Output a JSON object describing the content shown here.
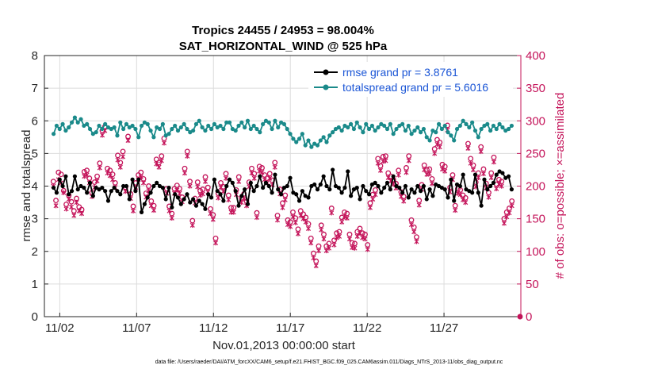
{
  "chart_data": {
    "type": "line",
    "title": [
      "Tropics 24455 / 24953 = 98.004%",
      "SAT_HORIZONTAL_WIND @ 525 hPa"
    ],
    "xlabel": "Nov.01,2013 00:00:00 start",
    "ylabel": "rmse and totalspread",
    "ylabel_right": "# of obs: o=possible; ×=assimilated",
    "xlim": [
      0.5,
      31.5
    ],
    "ylim": [
      0,
      8
    ],
    "ylim_right": [
      0,
      400
    ],
    "x_ticks": [
      {
        "value": 1.5,
        "label": "11/02"
      },
      {
        "value": 6.5,
        "label": "11/07"
      },
      {
        "value": 11.5,
        "label": "11/12"
      },
      {
        "value": 16.5,
        "label": "11/17"
      },
      {
        "value": 21.5,
        "label": "11/22"
      },
      {
        "value": 26.5,
        "label": "11/27"
      }
    ],
    "y_ticks": [
      0,
      1,
      2,
      3,
      4,
      5,
      6,
      7,
      8
    ],
    "y_ticks_right": [
      0,
      50,
      100,
      150,
      200,
      250,
      300,
      350,
      400
    ],
    "grid": true,
    "legend_position": "top-right",
    "colors": {
      "rmse": "#000000",
      "spread": "#1a8a8a",
      "obs": "#c4145a",
      "axis": "#262626",
      "legend_text": "#1a55d6"
    },
    "series": [
      {
        "name": "rmse grand pr = 3.8761",
        "color": "#000000",
        "marker": "filled-circle",
        "values": [
          3.95,
          3.8,
          4.2,
          4.0,
          4.3,
          3.75,
          3.85,
          4.3,
          3.9,
          4.0,
          3.95,
          3.8,
          4.1,
          3.7,
          3.95,
          3.9,
          3.95,
          3.85,
          3.55,
          3.85,
          3.95,
          3.85,
          3.75,
          4.0,
          4.0,
          3.6,
          4.2,
          3.85,
          4.2,
          3.2,
          3.45,
          3.65,
          3.8,
          4.0,
          4.1,
          4.0,
          3.95,
          3.6,
          3.95,
          3.35,
          3.75,
          3.65,
          3.45,
          3.6,
          3.75,
          3.5,
          3.6,
          3.4,
          3.55,
          3.45,
          3.3,
          3.75,
          3.65,
          4.2,
          3.85,
          3.75,
          3.55,
          4.0,
          4.2,
          4.1,
          3.85,
          3.4,
          3.7,
          3.9,
          3.45,
          4.1,
          3.85,
          4.0,
          4.3,
          3.95,
          4.1,
          4.0,
          3.8,
          4.35,
          3.9,
          3.75,
          3.95,
          4.0,
          4.25,
          3.8,
          3.75,
          3.55,
          3.85,
          3.7,
          3.65,
          4.0,
          4.05,
          3.9,
          4.05,
          4.3,
          4.0,
          3.9,
          4.5,
          4.0,
          3.95,
          3.8,
          3.95,
          4.45,
          3.7,
          3.9,
          3.95,
          3.6,
          4.0,
          3.85,
          3.75,
          4.05,
          4.1,
          4.0,
          3.8,
          3.95,
          4.1,
          3.9,
          4.3,
          4.0,
          3.95,
          3.8,
          4.0,
          3.65,
          3.9,
          3.8,
          4.0,
          3.85,
          4.0,
          3.6,
          3.9,
          3.7,
          4.05,
          4.0,
          3.95,
          3.9,
          3.65,
          4.2,
          3.55,
          4.05,
          4.0,
          4.35,
          3.9,
          3.85,
          3.8,
          4.35,
          3.8,
          3.4,
          4.2,
          3.9,
          4.0,
          4.1,
          4.35,
          4.45,
          4.4,
          4.25,
          4.3,
          3.9
        ]
      },
      {
        "name": "totalspread grand pr = 5.6016",
        "color": "#1a8a8a",
        "marker": "filled-circle",
        "values": [
          5.6,
          5.85,
          5.75,
          5.9,
          5.7,
          5.8,
          5.95,
          6.1,
          5.95,
          6.05,
          5.85,
          5.9,
          5.75,
          5.6,
          5.65,
          5.85,
          5.75,
          5.9,
          5.8,
          5.75,
          5.8,
          5.55,
          5.95,
          5.75,
          5.9,
          5.8,
          5.85,
          5.75,
          5.5,
          5.85,
          5.95,
          5.9,
          5.7,
          5.5,
          5.8,
          5.75,
          5.9,
          5.55,
          5.6,
          5.75,
          5.85,
          5.7,
          5.8,
          5.9,
          5.75,
          5.65,
          5.7,
          5.9,
          6.0,
          5.8,
          5.7,
          5.85,
          5.75,
          5.9,
          5.8,
          5.85,
          5.75,
          5.95,
          5.95,
          5.75,
          5.7,
          5.85,
          5.95,
          5.8,
          6.0,
          5.75,
          5.85,
          5.75,
          5.65,
          5.9,
          6.0,
          5.95,
          5.75,
          6.0,
          5.8,
          5.95,
          5.9,
          5.75,
          5.6,
          5.45,
          5.35,
          5.45,
          5.6,
          5.25,
          5.4,
          5.2,
          5.3,
          5.25,
          5.4,
          5.5,
          5.35,
          5.55,
          5.65,
          5.75,
          5.8,
          5.7,
          5.85,
          5.8,
          5.9,
          5.75,
          5.95,
          5.8,
          5.65,
          5.9,
          5.75,
          5.85,
          5.7,
          5.8,
          5.9,
          5.85,
          5.75,
          5.9,
          5.6,
          5.75,
          5.85,
          5.9,
          5.7,
          5.85,
          5.6,
          5.7,
          5.8,
          5.65,
          5.75,
          5.5,
          5.4,
          5.7,
          5.65,
          5.9,
          5.75,
          5.85,
          5.65,
          5.55,
          5.4,
          5.75,
          5.85,
          6.0,
          5.9,
          5.8,
          5.95,
          5.7,
          5.5,
          5.75,
          5.85,
          5.9,
          5.7,
          5.85,
          5.75,
          5.9,
          5.8,
          5.7,
          5.75,
          5.85
        ]
      }
    ],
    "obs_counts": {
      "possible": [
        207,
        178,
        221,
        218,
        193,
        172,
        186,
        176,
        162,
        181,
        168,
        164,
        222,
        224,
        212,
        190,
        206,
        215,
        235,
        285,
        291,
        227,
        224,
        218,
        205,
        247,
        236,
        253,
        198,
        276,
        188,
        169,
        205,
        217,
        221,
        211,
        189,
        200,
        177,
        170,
        241,
        236,
        246,
        273,
        196,
        169,
        158,
        196,
        201,
        196,
        183,
        227,
        253,
        207,
        147,
        181,
        206,
        193,
        195,
        214,
        198,
        165,
        156,
        120,
        189,
        205,
        199,
        219,
        186,
        167,
        167,
        194,
        214,
        182,
        188,
        177,
        206,
        227,
        219,
        159,
        230,
        228,
        217,
        212,
        219,
        209,
        236,
        155,
        195,
        174,
        186,
        148,
        145,
        160,
        151,
        134,
        162,
        157,
        152,
        142,
        120,
        97,
        85,
        108,
        140,
        126,
        108,
        112,
        166,
        117,
        128,
        130,
        152,
        160,
        158,
        126,
        113,
        112,
        130,
        135,
        128,
        126,
        110,
        174,
        187,
        194,
        242,
        231,
        245,
        246,
        220,
        215,
        210,
        204,
        224,
        191,
        184,
        228,
        246,
        148,
        137,
        122,
        178,
        202,
        232,
        225,
        226,
        211,
        257,
        271,
        267,
        233,
        230,
        293,
        198,
        217,
        170,
        196,
        194,
        186,
        182,
        265,
        242,
        232,
        206,
        220,
        260,
        226,
        204,
        190,
        220,
        244,
        203,
        210,
        207,
        150,
        160,
        166,
        177
      ],
      "assimilated": [
        200,
        170,
        210,
        205,
        190,
        165,
        180,
        168,
        155,
        175,
        162,
        158,
        215,
        217,
        205,
        184,
        198,
        208,
        228,
        278,
        285,
        220,
        216,
        210,
        198,
        240,
        229,
        245,
        192,
        270,
        181,
        162,
        198,
        210,
        214,
        205,
        183,
        193,
        170,
        163,
        234,
        229,
        239,
        266,
        189,
        162,
        151,
        189,
        194,
        189,
        176,
        220,
        246,
        200,
        140,
        174,
        199,
        186,
        188,
        207,
        191,
        158,
        149,
        113,
        182,
        198,
        192,
        212,
        179,
        160,
        160,
        187,
        207,
        175,
        181,
        170,
        199,
        220,
        212,
        152,
        223,
        221,
        210,
        205,
        212,
        202,
        229,
        148,
        188,
        167,
        179,
        141,
        138,
        153,
        144,
        127,
        155,
        150,
        145,
        135,
        113,
        90,
        78,
        101,
        133,
        119,
        101,
        105,
        159,
        110,
        121,
        123,
        145,
        153,
        151,
        119,
        106,
        105,
        123,
        128,
        121,
        119,
        103,
        167,
        180,
        187,
        235,
        224,
        238,
        239,
        213,
        208,
        203,
        197,
        217,
        184,
        177,
        221,
        239,
        141,
        130,
        115,
        171,
        195,
        225,
        218,
        219,
        204,
        250,
        264,
        260,
        226,
        223,
        286,
        191,
        210,
        163,
        189,
        187,
        179,
        175,
        258,
        235,
        225,
        199,
        213,
        253,
        219,
        197,
        183,
        213,
        237,
        196,
        203,
        200,
        143,
        153,
        159,
        170
      ]
    },
    "footnote": "data file: /Users/raeder/DAI/ATM_forcXX/CAM6_setup/f.e21.FHIST_BGC.f09_025.CAM6assim.011/Diags_NTrS_2013-11/obs_diag_output.nc"
  }
}
